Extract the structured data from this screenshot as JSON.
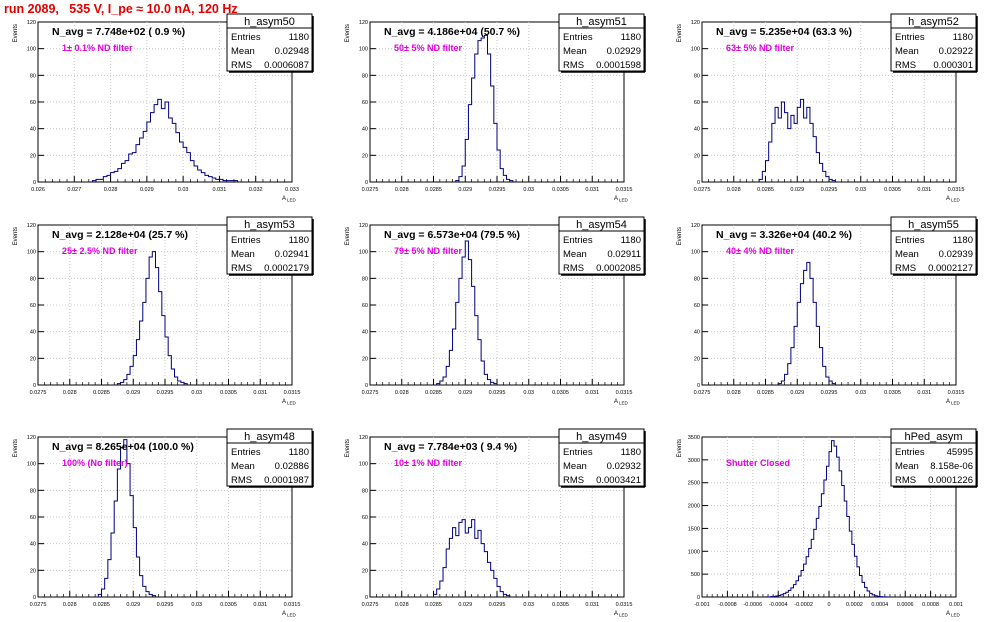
{
  "page": {
    "title": "run 2089,   535 V, I_pe ≈ 10.0 nA, 120 Hz"
  },
  "style": {
    "title_color": "#e00000",
    "line_color": "#000080",
    "annot_color": "#e000e0",
    "grid_color": "#c8c8c8"
  },
  "stats_labels": {
    "entries": "Entries",
    "mean": "Mean",
    "rms": "RMS"
  },
  "xlabel": "A_LED",
  "ylabel": "Events",
  "chart_data": [
    {
      "type": "histogram",
      "name": "h_asym50",
      "header": "N_avg = 7.748e+02 ( 0.9 %)",
      "annotation": "1± 0.1% ND filter",
      "entries": "1180",
      "mean": "0.02948",
      "rms": "0.0006087",
      "xlim": [
        0.026,
        0.033
      ],
      "ylim": [
        0,
        120
      ],
      "xticks": [
        "0.026",
        "0.027",
        "0.028",
        "0.029",
        "0.03",
        "0.031",
        "0.032",
        "0.033"
      ],
      "yticks": [
        "0",
        "20",
        "40",
        "60",
        "80",
        "100",
        "120"
      ],
      "bin_start": 0.0275,
      "bin_width": 0.0001,
      "counts": [
        1,
        2,
        2,
        4,
        5,
        7,
        8,
        10,
        14,
        16,
        21,
        22,
        28,
        33,
        38,
        45,
        52,
        58,
        62,
        55,
        60,
        48,
        44,
        37,
        30,
        26,
        22,
        16,
        12,
        9,
        7,
        5,
        4,
        3,
        2,
        2,
        1,
        1,
        1,
        1
      ]
    },
    {
      "type": "histogram",
      "name": "h_asym51",
      "header": "N_avg = 4.186e+04 (50.7 %)",
      "annotation": "50± 5% ND filter",
      "entries": "1180",
      "mean": "0.02929",
      "rms": "0.0001598",
      "xlim": [
        0.0275,
        0.0315
      ],
      "ylim": [
        0,
        120
      ],
      "xticks": [
        "0.0275",
        "0.028",
        "0.0285",
        "0.029",
        "0.0295",
        "0.03",
        "0.0305",
        "0.031",
        "0.0315"
      ],
      "yticks": [
        "0",
        "20",
        "40",
        "60",
        "80",
        "100",
        "120"
      ],
      "bin_start": 0.02885,
      "bin_width": 5e-05,
      "counts": [
        1,
        4,
        12,
        32,
        58,
        78,
        96,
        106,
        108,
        110,
        96,
        72,
        44,
        24,
        10,
        5,
        2,
        1
      ]
    },
    {
      "type": "histogram",
      "name": "h_asym52",
      "header": "N_avg = 5.235e+04 (63.3 %)",
      "annotation": "63± 5% ND filter",
      "entries": "1180",
      "mean": "0.02922",
      "rms": "0.000301",
      "xlim": [
        0.0275,
        0.0315
      ],
      "ylim": [
        0,
        120
      ],
      "xticks": [
        "0.0275",
        "0.028",
        "0.0285",
        "0.029",
        "0.0295",
        "0.03",
        "0.0305",
        "0.031",
        "0.0315"
      ],
      "yticks": [
        "0",
        "20",
        "40",
        "60",
        "80",
        "100",
        "120"
      ],
      "bin_start": 0.0284,
      "bin_width": 5e-05,
      "counts": [
        2,
        8,
        16,
        30,
        44,
        56,
        48,
        60,
        52,
        40,
        50,
        44,
        56,
        62,
        48,
        56,
        44,
        34,
        22,
        14,
        8,
        4,
        2,
        1
      ]
    },
    {
      "type": "histogram",
      "name": "h_asym53",
      "header": "N_avg = 2.128e+04 (25.7 %)",
      "annotation": "25± 2.5% ND filter",
      "entries": "1180",
      "mean": "0.02941",
      "rms": "0.0002179",
      "xlim": [
        0.0275,
        0.0315
      ],
      "ylim": [
        0,
        120
      ],
      "xticks": [
        "0.0275",
        "0.028",
        "0.0285",
        "0.029",
        "0.0295",
        "0.03",
        "0.0305",
        "0.031",
        "0.0315"
      ],
      "yticks": [
        "0",
        "20",
        "40",
        "60",
        "80",
        "100",
        "120"
      ],
      "bin_start": 0.02875,
      "bin_width": 5e-05,
      "counts": [
        1,
        2,
        4,
        8,
        14,
        22,
        34,
        48,
        62,
        80,
        96,
        100,
        88,
        70,
        52,
        36,
        22,
        12,
        6,
        3,
        2,
        1
      ]
    },
    {
      "type": "histogram",
      "name": "h_asym54",
      "header": "N_avg = 6.573e+04 (79.5 %)",
      "annotation": "79± 5% ND filter",
      "entries": "1180",
      "mean": "0.02911",
      "rms": "0.0002085",
      "xlim": [
        0.0275,
        0.0315
      ],
      "ylim": [
        0,
        120
      ],
      "xticks": [
        "0.0275",
        "0.028",
        "0.0285",
        "0.029",
        "0.0295",
        "0.03",
        "0.0305",
        "0.031",
        "0.0315"
      ],
      "yticks": [
        "0",
        "20",
        "40",
        "60",
        "80",
        "100",
        "120"
      ],
      "bin_start": 0.02855,
      "bin_width": 5e-05,
      "counts": [
        1,
        3,
        6,
        14,
        26,
        42,
        62,
        80,
        96,
        108,
        94,
        74,
        52,
        34,
        18,
        8,
        4,
        2,
        1
      ]
    },
    {
      "type": "histogram",
      "name": "h_asym55",
      "header": "N_avg = 3.326e+04 (40.2 %)",
      "annotation": "40± 4% ND filter",
      "entries": "1180",
      "mean": "0.02939",
      "rms": "0.0002127",
      "xlim": [
        0.0275,
        0.0315
      ],
      "ylim": [
        0,
        120
      ],
      "xticks": [
        "0.0275",
        "0.028",
        "0.0285",
        "0.029",
        "0.0295",
        "0.03",
        "0.0305",
        "0.031",
        "0.0315"
      ],
      "yticks": [
        "0",
        "20",
        "40",
        "60",
        "80",
        "100",
        "120"
      ],
      "bin_start": 0.0287,
      "bin_width": 5e-05,
      "counts": [
        1,
        3,
        8,
        16,
        28,
        44,
        62,
        76,
        86,
        92,
        80,
        62,
        44,
        28,
        14,
        6,
        3,
        1
      ]
    },
    {
      "type": "histogram",
      "name": "h_asym48",
      "header": "N_avg = 8.265e+04 (100.0 %)",
      "annotation": "100% (No filter)",
      "entries": "1180",
      "mean": "0.02886",
      "rms": "0.0001987",
      "xlim": [
        0.0275,
        0.0315
      ],
      "ylim": [
        0,
        120
      ],
      "xticks": [
        "0.0275",
        "0.028",
        "0.0285",
        "0.029",
        "0.0295",
        "0.03",
        "0.0305",
        "0.031",
        "0.0315"
      ],
      "yticks": [
        "0",
        "20",
        "40",
        "60",
        "80",
        "100",
        "120"
      ],
      "bin_start": 0.02845,
      "bin_width": 5e-05,
      "counts": [
        2,
        6,
        14,
        28,
        48,
        72,
        96,
        112,
        118,
        100,
        76,
        52,
        30,
        16,
        8,
        4,
        2,
        1
      ]
    },
    {
      "type": "histogram",
      "name": "h_asym49",
      "header": "N_avg = 7.784e+03 ( 9.4 %)",
      "annotation": "10± 1% ND filter",
      "entries": "1180",
      "mean": "0.02932",
      "rms": "0.0003421",
      "xlim": [
        0.0275,
        0.0315
      ],
      "ylim": [
        0,
        120
      ],
      "xticks": [
        "0.0275",
        "0.028",
        "0.0285",
        "0.029",
        "0.0295",
        "0.03",
        "0.0305",
        "0.031",
        "0.0315"
      ],
      "yticks": [
        "0",
        "20",
        "40",
        "60",
        "80",
        "100",
        "120"
      ],
      "bin_start": 0.0285,
      "bin_width": 5e-05,
      "counts": [
        2,
        6,
        12,
        22,
        36,
        44,
        52,
        46,
        56,
        58,
        48,
        52,
        58,
        44,
        50,
        40,
        34,
        26,
        20,
        14,
        8,
        4,
        2,
        1
      ]
    },
    {
      "type": "histogram",
      "name": "hPed_asym",
      "header": "",
      "annotation": "Shutter Closed",
      "entries": "45995",
      "mean": "8.158e-06",
      "rms": "0.0001226",
      "xlim": [
        -0.001,
        0.001
      ],
      "ylim": [
        0,
        3500
      ],
      "xticks": [
        "-0.001",
        "-0.0008",
        "-0.0006",
        "-0.0004",
        "-0.0002",
        "0",
        "0.0002",
        "0.0004",
        "0.0006",
        "0.0008",
        "0.001"
      ],
      "yticks": [
        "0",
        "500",
        "1000",
        "1500",
        "2000",
        "2500",
        "3000",
        "3500"
      ],
      "bin_start": -0.0005,
      "bin_width": 2e-05,
      "counts": [
        2,
        4,
        8,
        14,
        22,
        34,
        50,
        74,
        104,
        146,
        200,
        270,
        356,
        460,
        580,
        720,
        880,
        1060,
        1260,
        1480,
        1720,
        1980,
        2260,
        2560,
        2860,
        3180,
        3420,
        3300,
        3060,
        2760,
        2440,
        2100,
        1760,
        1440,
        1150,
        890,
        660,
        470,
        320,
        210,
        130,
        80,
        46,
        26,
        14,
        8,
        4,
        2,
        1
      ]
    }
  ]
}
